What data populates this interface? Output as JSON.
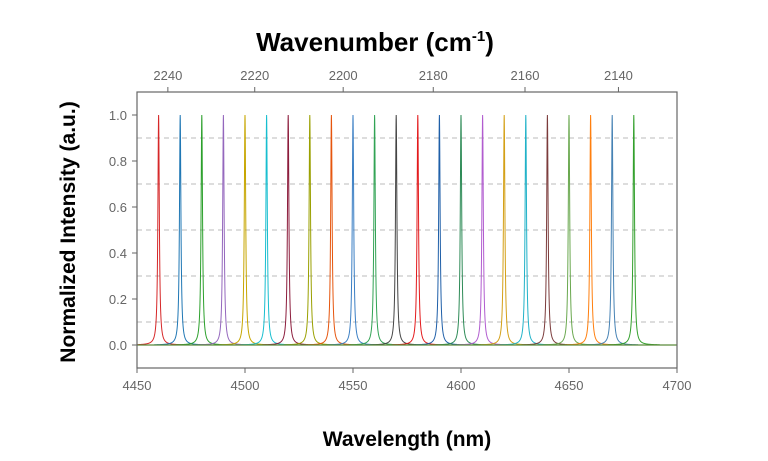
{
  "chart_data": {
    "type": "line",
    "title": "",
    "top_axis": {
      "label": "Wavenumber (cm",
      "label_superscript": "-1",
      "label_suffix": ")",
      "ticks": [
        2240,
        2220,
        2200,
        2180,
        2160,
        2140
      ]
    },
    "xlabel": "Wavelength (nm)",
    "ylabel": "Normalized Intensity (a.u.)",
    "xlim": [
      4450,
      4700
    ],
    "ylim": [
      -0.1,
      1.1
    ],
    "x_ticks": [
      4450,
      4500,
      4550,
      4600,
      4650,
      4700
    ],
    "y_ticks": [
      0.0,
      0.2,
      0.4,
      0.6,
      0.8,
      1.0
    ],
    "y_tick_labels": [
      "0.0",
      "0.2",
      "0.4",
      "0.6",
      "0.8",
      "1.0"
    ],
    "grid": "dashed horizontal at 0.1, 0.3, 0.5, 0.7, 0.9",
    "grid_y": [
      0.1,
      0.3,
      0.5,
      0.7,
      0.9
    ],
    "legend": "none",
    "peak_fwhm_nm": 0.8,
    "series": [
      {
        "peak_x": 4460,
        "peak_y": 1.0,
        "color": "#d62728"
      },
      {
        "peak_x": 4470,
        "peak_y": 1.0,
        "color": "#1f77b4"
      },
      {
        "peak_x": 4480,
        "peak_y": 1.0,
        "color": "#2ca02c"
      },
      {
        "peak_x": 4490,
        "peak_y": 1.0,
        "color": "#9467bd"
      },
      {
        "peak_x": 4500,
        "peak_y": 1.0,
        "color": "#c7a600"
      },
      {
        "peak_x": 4510,
        "peak_y": 1.0,
        "color": "#17becf"
      },
      {
        "peak_x": 4520,
        "peak_y": 1.0,
        "color": "#8c1c3c"
      },
      {
        "peak_x": 4530,
        "peak_y": 1.0,
        "color": "#9aa000"
      },
      {
        "peak_x": 4540,
        "peak_y": 1.0,
        "color": "#e6550d"
      },
      {
        "peak_x": 4550,
        "peak_y": 1.0,
        "color": "#3b7fc4"
      },
      {
        "peak_x": 4560,
        "peak_y": 1.0,
        "color": "#31a354"
      },
      {
        "peak_x": 4570,
        "peak_y": 1.0,
        "color": "#444444"
      },
      {
        "peak_x": 4580,
        "peak_y": 1.0,
        "color": "#e31a1c"
      },
      {
        "peak_x": 4590,
        "peak_y": 1.0,
        "color": "#1f5fa8"
      },
      {
        "peak_x": 4600,
        "peak_y": 1.0,
        "color": "#2e8b57"
      },
      {
        "peak_x": 4610,
        "peak_y": 1.0,
        "color": "#b15ccf"
      },
      {
        "peak_x": 4620,
        "peak_y": 1.0,
        "color": "#d4a017"
      },
      {
        "peak_x": 4630,
        "peak_y": 1.0,
        "color": "#20b2c8"
      },
      {
        "peak_x": 4640,
        "peak_y": 1.0,
        "color": "#7b3b3b"
      },
      {
        "peak_x": 4650,
        "peak_y": 1.0,
        "color": "#6aa84f"
      },
      {
        "peak_x": 4660,
        "peak_y": 1.0,
        "color": "#ff7f0e"
      },
      {
        "peak_x": 4670,
        "peak_y": 1.0,
        "color": "#4682b4"
      },
      {
        "peak_x": 4680,
        "peak_y": 1.0,
        "color": "#33a02c"
      }
    ]
  }
}
